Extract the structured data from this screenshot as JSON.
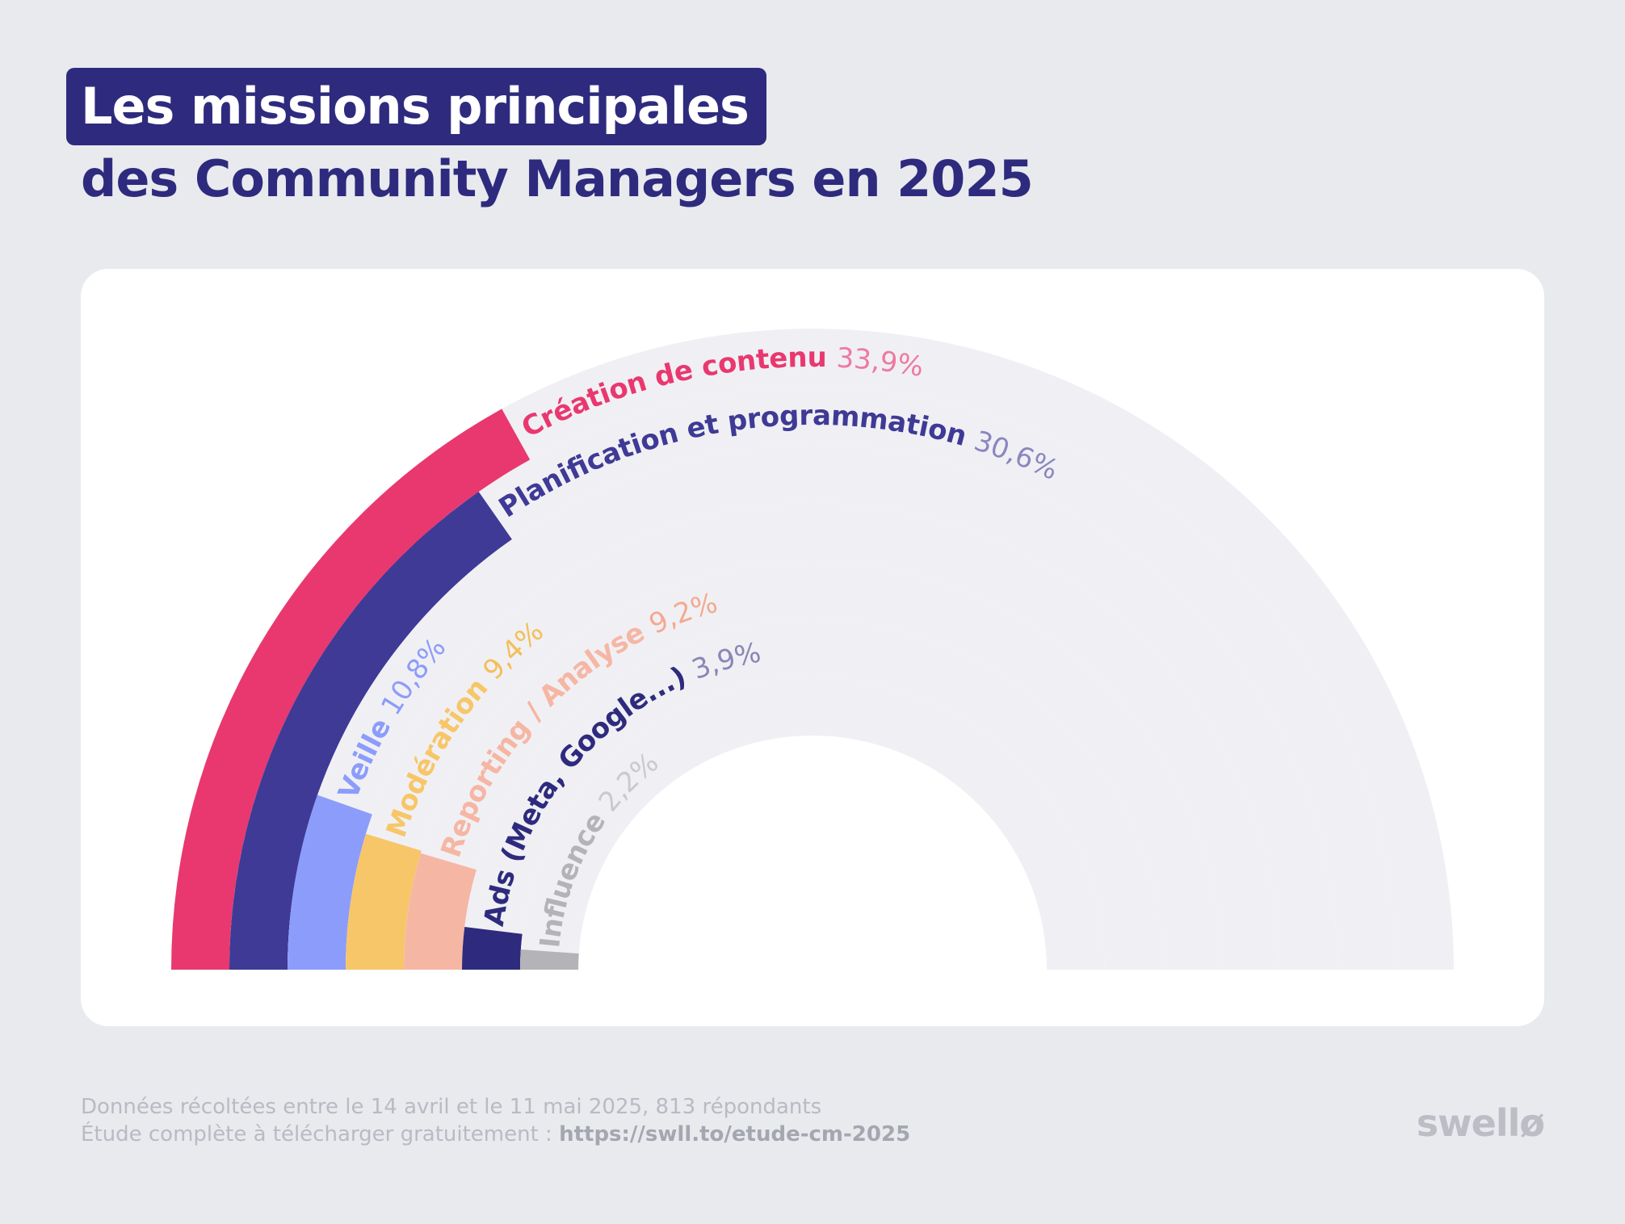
{
  "title": {
    "line1": "Les missions principales",
    "line2": "des Community Managers en 2025"
  },
  "chart_data": {
    "type": "radial-bar",
    "unit": "%",
    "scale_max": 100,
    "track_color": "#f0f0f4",
    "series": [
      {
        "name": "Création de contenu",
        "value_label": "33,9%",
        "value": 33.9,
        "color": "#e9386f",
        "value_color": "#ee7a9f"
      },
      {
        "name": "Planification et programmation",
        "value_label": "30,6%",
        "value": 30.6,
        "color": "#3f3a96",
        "value_color": "#8a86c0"
      },
      {
        "name": "Veille",
        "value_label": "10,8%",
        "value": 10.8,
        "color": "#8c9cfb",
        "value_color": "#8c9cfb"
      },
      {
        "name": "Modération",
        "value_label": "9,4%",
        "value": 9.4,
        "color": "#f7c668",
        "value_color": "#f4bf5a"
      },
      {
        "name": "Reporting / Analyse",
        "value_label": "9,2%",
        "value": 9.2,
        "color": "#f6b6a4",
        "value_color": "#f4a98f"
      },
      {
        "name": "Ads (Meta, Google...)",
        "value_label": "3,9%",
        "value": 3.9,
        "color": "#2e2b7e",
        "value_color": "#8a86b6"
      },
      {
        "name": "Influence",
        "value_label": "2,2%",
        "value": 2.2,
        "color": "#b3b3b8",
        "value_color": "#c9c9ce"
      }
    ]
  },
  "footer": {
    "line1": "Données récoltées entre le 14 avril et le 11 mai 2025, 813 répondants",
    "line2_prefix": "Étude complète à télécharger gratuitement : ",
    "line2_link": "https://swll.to/etude-cm-2025"
  },
  "brand": "swellø"
}
